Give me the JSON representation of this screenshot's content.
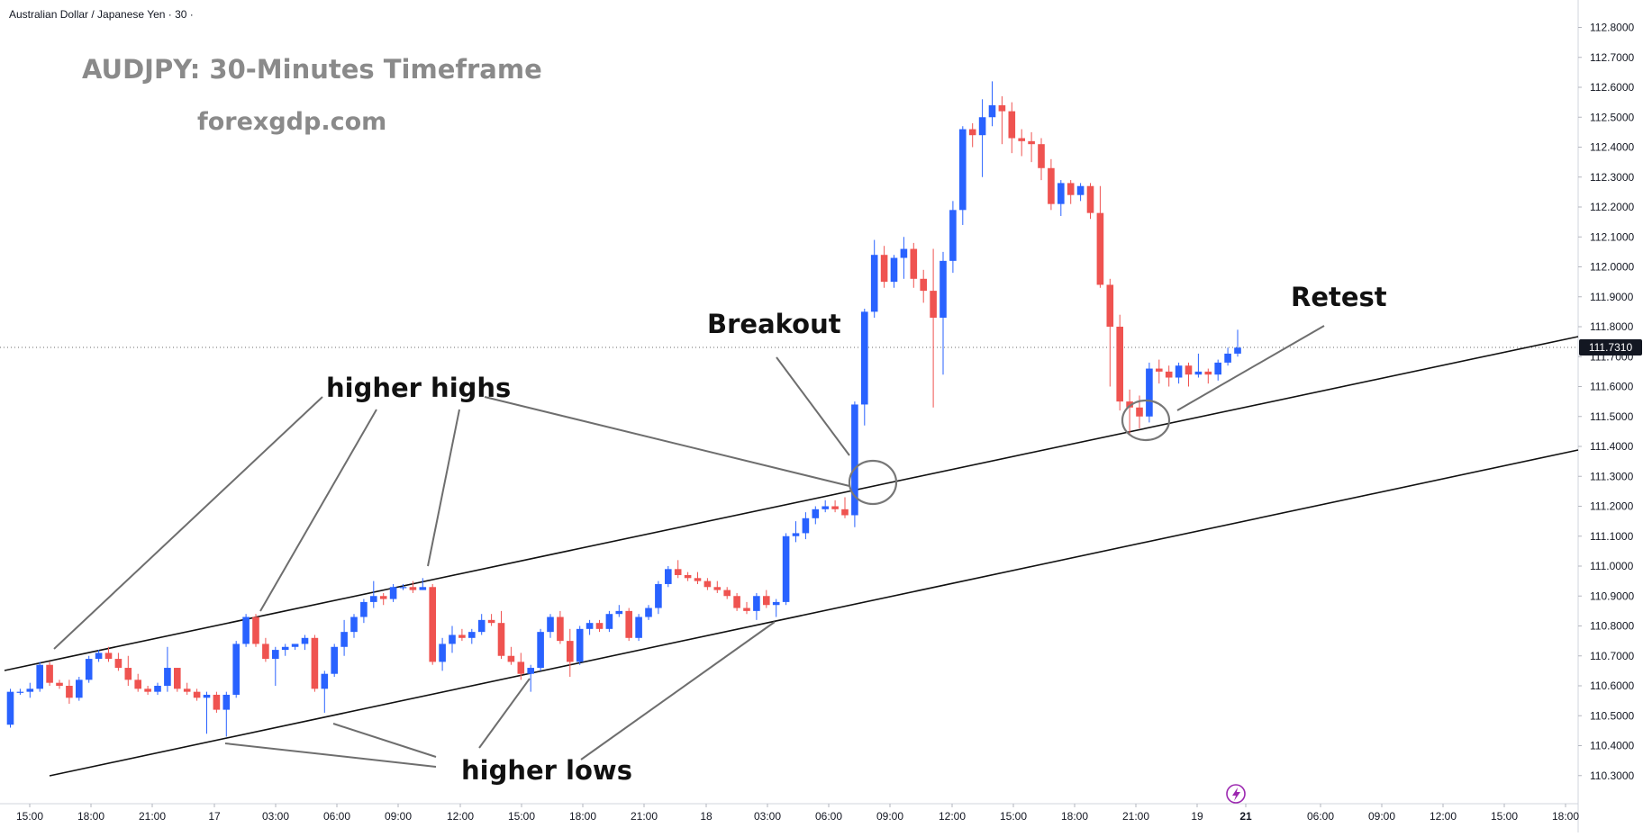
{
  "symbol_label": "Australian Dollar / Japanese Yen · 30 ·",
  "watermark": {
    "title": "AUDJPY: 30-Minutes Timeframe",
    "site": "forexgdp.com"
  },
  "annotations": {
    "breakout": "Breakout",
    "retest": "Retest",
    "higher_highs": "higher highs",
    "higher_lows": "higher lows"
  },
  "colors": {
    "up": "#2962ff",
    "down": "#ef5350",
    "text": "#131722",
    "price_tag_bg": "#131722"
  },
  "chart_data": {
    "type": "candlestick",
    "symbol": "AUDJPY",
    "timeframe": "30",
    "last_price": "111.7310",
    "ylim": [
      110.23,
      112.88
    ],
    "y_ticks": [
      "112.8000",
      "112.7000",
      "112.6000",
      "112.5000",
      "112.4000",
      "112.3000",
      "112.2000",
      "112.1000",
      "112.0000",
      "111.9000",
      "111.8000",
      "111.7000",
      "111.6000",
      "111.5000",
      "111.4000",
      "111.3000",
      "111.2000",
      "111.1000",
      "111.0000",
      "110.9000",
      "110.8000",
      "110.7000",
      "110.6000",
      "110.5000",
      "110.4000",
      "110.3000"
    ],
    "x_ticks": [
      "15:00",
      "18:00",
      "21:00",
      "17",
      "03:00",
      "06:00",
      "09:00",
      "12:00",
      "15:00",
      "18:00",
      "21:00",
      "18",
      "03:00",
      "06:00",
      "09:00",
      "12:00",
      "15:00",
      "18:00",
      "21:00",
      "19",
      "21",
      "06:00",
      "09:00",
      "12:00",
      "15:00",
      "18:00"
    ],
    "candles": [
      [
        110.47,
        110.59,
        110.46,
        110.58
      ],
      [
        110.58,
        110.59,
        110.57,
        110.58
      ],
      [
        110.58,
        110.61,
        110.56,
        110.59
      ],
      [
        110.59,
        110.68,
        110.58,
        110.67
      ],
      [
        110.67,
        110.68,
        110.6,
        110.61
      ],
      [
        110.61,
        110.62,
        110.59,
        110.6
      ],
      [
        110.6,
        110.62,
        110.54,
        110.56
      ],
      [
        110.56,
        110.63,
        110.55,
        110.62
      ],
      [
        110.62,
        110.7,
        110.61,
        110.69
      ],
      [
        110.69,
        110.72,
        110.68,
        110.71
      ],
      [
        110.71,
        110.73,
        110.68,
        110.69
      ],
      [
        110.69,
        110.71,
        110.65,
        110.66
      ],
      [
        110.66,
        110.7,
        110.6,
        110.62
      ],
      [
        110.62,
        110.64,
        110.58,
        110.59
      ],
      [
        110.59,
        110.6,
        110.57,
        110.58
      ],
      [
        110.58,
        110.61,
        110.57,
        110.6
      ],
      [
        110.6,
        110.73,
        110.58,
        110.66
      ],
      [
        110.66,
        110.66,
        110.58,
        110.59
      ],
      [
        110.59,
        110.61,
        110.57,
        110.58
      ],
      [
        110.58,
        110.59,
        110.55,
        110.56
      ],
      [
        110.56,
        110.58,
        110.44,
        110.57
      ],
      [
        110.57,
        110.58,
        110.51,
        110.52
      ],
      [
        110.52,
        110.58,
        110.43,
        110.57
      ],
      [
        110.57,
        110.75,
        110.56,
        110.74
      ],
      [
        110.74,
        110.84,
        110.73,
        110.83
      ],
      [
        110.83,
        110.84,
        110.73,
        110.74
      ],
      [
        110.74,
        110.76,
        110.68,
        110.69
      ],
      [
        110.69,
        110.73,
        110.6,
        110.72
      ],
      [
        110.72,
        110.74,
        110.7,
        110.73
      ],
      [
        110.73,
        110.74,
        110.72,
        110.74
      ],
      [
        110.74,
        110.77,
        110.72,
        110.76
      ],
      [
        110.76,
        110.77,
        110.58,
        110.59
      ],
      [
        110.59,
        110.65,
        110.51,
        110.64
      ],
      [
        110.64,
        110.74,
        110.63,
        110.73
      ],
      [
        110.73,
        110.82,
        110.7,
        110.78
      ],
      [
        110.78,
        110.84,
        110.76,
        110.83
      ],
      [
        110.83,
        110.89,
        110.81,
        110.88
      ],
      [
        110.88,
        110.95,
        110.86,
        110.9
      ],
      [
        110.9,
        110.91,
        110.87,
        110.89
      ],
      [
        110.89,
        110.94,
        110.88,
        110.93
      ],
      [
        110.93,
        110.94,
        110.92,
        110.93
      ],
      [
        110.93,
        110.95,
        110.91,
        110.92
      ],
      [
        110.92,
        110.96,
        110.92,
        110.93
      ],
      [
        110.93,
        110.94,
        110.67,
        110.68
      ],
      [
        110.68,
        110.76,
        110.65,
        110.74
      ],
      [
        110.74,
        110.8,
        110.71,
        110.77
      ],
      [
        110.77,
        110.79,
        110.75,
        110.76
      ],
      [
        110.76,
        110.79,
        110.74,
        110.78
      ],
      [
        110.78,
        110.84,
        110.77,
        110.82
      ],
      [
        110.82,
        110.84,
        110.8,
        110.81
      ],
      [
        110.81,
        110.85,
        110.69,
        110.7
      ],
      [
        110.7,
        110.73,
        110.67,
        110.68
      ],
      [
        110.68,
        110.71,
        110.62,
        110.64
      ],
      [
        110.64,
        110.67,
        110.58,
        110.66
      ],
      [
        110.66,
        110.79,
        110.65,
        110.78
      ],
      [
        110.78,
        110.84,
        110.76,
        110.83
      ],
      [
        110.83,
        110.85,
        110.74,
        110.75
      ],
      [
        110.75,
        110.79,
        110.63,
        110.68
      ],
      [
        110.68,
        110.8,
        110.67,
        110.79
      ],
      [
        110.79,
        110.82,
        110.77,
        110.81
      ],
      [
        110.81,
        110.82,
        110.78,
        110.79
      ],
      [
        110.79,
        110.85,
        110.78,
        110.84
      ],
      [
        110.84,
        110.87,
        110.83,
        110.85
      ],
      [
        110.85,
        110.86,
        110.75,
        110.76
      ],
      [
        110.76,
        110.84,
        110.75,
        110.83
      ],
      [
        110.83,
        110.87,
        110.82,
        110.86
      ],
      [
        110.86,
        110.95,
        110.84,
        110.94
      ],
      [
        110.94,
        111.0,
        110.93,
        110.99
      ],
      [
        110.99,
        111.02,
        110.96,
        110.97
      ],
      [
        110.97,
        110.98,
        110.95,
        110.96
      ],
      [
        110.96,
        110.98,
        110.94,
        110.95
      ],
      [
        110.95,
        110.96,
        110.92,
        110.93
      ],
      [
        110.93,
        110.95,
        110.91,
        110.92
      ],
      [
        110.92,
        110.93,
        110.89,
        110.9
      ],
      [
        110.9,
        110.91,
        110.85,
        110.86
      ],
      [
        110.86,
        110.88,
        110.84,
        110.85
      ],
      [
        110.85,
        110.91,
        110.82,
        110.9
      ],
      [
        110.9,
        110.92,
        110.86,
        110.87
      ],
      [
        110.87,
        110.89,
        110.83,
        110.88
      ],
      [
        110.88,
        111.11,
        110.87,
        111.1
      ],
      [
        111.1,
        111.15,
        111.08,
        111.11
      ],
      [
        111.11,
        111.18,
        111.09,
        111.16
      ],
      [
        111.16,
        111.2,
        111.14,
        111.19
      ],
      [
        111.19,
        111.22,
        111.18,
        111.2
      ],
      [
        111.2,
        111.22,
        111.18,
        111.19
      ],
      [
        111.19,
        111.23,
        111.16,
        111.17
      ],
      [
        111.17,
        111.55,
        111.13,
        111.54
      ],
      [
        111.54,
        111.86,
        111.47,
        111.85
      ],
      [
        111.85,
        112.09,
        111.83,
        112.04
      ],
      [
        112.04,
        112.07,
        111.93,
        111.95
      ],
      [
        111.95,
        112.04,
        111.93,
        112.03
      ],
      [
        112.03,
        112.1,
        111.96,
        112.06
      ],
      [
        112.06,
        112.08,
        111.93,
        111.96
      ],
      [
        111.96,
        111.99,
        111.88,
        111.92
      ],
      [
        111.92,
        112.06,
        111.53,
        111.83
      ],
      [
        111.83,
        112.05,
        111.64,
        112.02
      ],
      [
        112.02,
        112.22,
        111.98,
        112.19
      ],
      [
        112.19,
        112.47,
        112.14,
        112.46
      ],
      [
        112.46,
        112.48,
        112.4,
        112.44
      ],
      [
        112.44,
        112.56,
        112.3,
        112.5
      ],
      [
        112.5,
        112.62,
        112.47,
        112.54
      ],
      [
        112.54,
        112.57,
        112.41,
        112.52
      ],
      [
        112.52,
        112.55,
        112.38,
        112.43
      ],
      [
        112.43,
        112.46,
        112.37,
        112.42
      ],
      [
        112.42,
        112.45,
        112.35,
        112.41
      ],
      [
        112.41,
        112.43,
        112.29,
        112.33
      ],
      [
        112.33,
        112.36,
        112.19,
        112.21
      ],
      [
        112.21,
        112.29,
        112.17,
        112.28
      ],
      [
        112.28,
        112.29,
        112.21,
        112.24
      ],
      [
        112.24,
        112.28,
        112.22,
        112.27
      ],
      [
        112.27,
        112.28,
        112.16,
        112.18
      ],
      [
        112.18,
        112.27,
        111.93,
        111.94
      ],
      [
        111.94,
        111.96,
        111.6,
        111.8
      ],
      [
        111.8,
        111.84,
        111.52,
        111.55
      ],
      [
        111.55,
        111.59,
        111.44,
        111.53
      ],
      [
        111.53,
        111.57,
        111.46,
        111.5
      ],
      [
        111.5,
        111.68,
        111.48,
        111.66
      ],
      [
        111.66,
        111.69,
        111.61,
        111.65
      ],
      [
        111.65,
        111.67,
        111.6,
        111.63
      ],
      [
        111.63,
        111.68,
        111.61,
        111.67
      ],
      [
        111.67,
        111.68,
        111.6,
        111.64
      ],
      [
        111.64,
        111.71,
        111.63,
        111.65
      ],
      [
        111.65,
        111.66,
        111.61,
        111.64
      ],
      [
        111.64,
        111.69,
        111.62,
        111.68
      ],
      [
        111.68,
        111.73,
        111.67,
        111.71
      ],
      [
        111.71,
        111.79,
        111.7,
        111.73
      ]
    ]
  }
}
